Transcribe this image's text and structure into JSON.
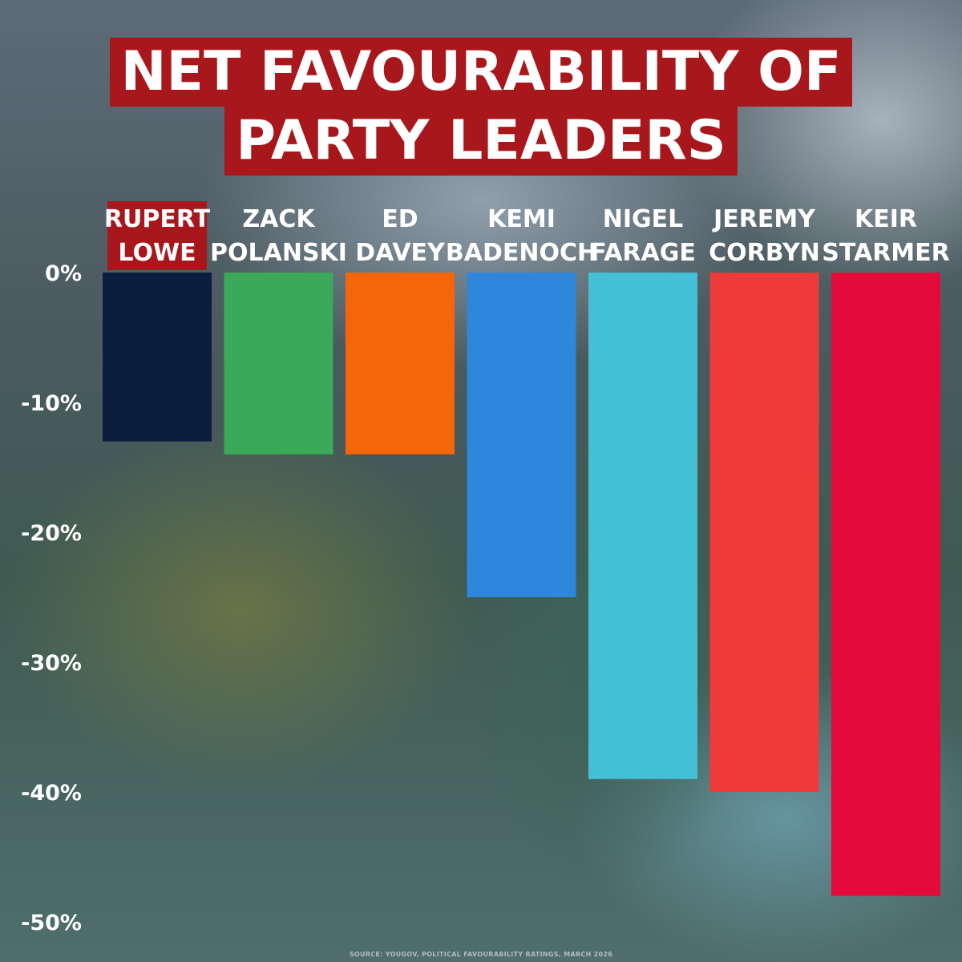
{
  "chart_data": {
    "type": "bar",
    "title": [
      "NET FAVOURABILITY OF",
      "PARTY LEADERS"
    ],
    "categories": [
      [
        "RUPERT",
        "LOWE"
      ],
      [
        "ZACK",
        "POLANSKI"
      ],
      [
        "ED",
        "DAVEY"
      ],
      [
        "KEMI",
        "BADENOCH"
      ],
      [
        "NIGEL",
        "FARAGE"
      ],
      [
        "JEREMY",
        "CORBYN"
      ],
      [
        "KEIR",
        "STARMER"
      ]
    ],
    "values": [
      -13,
      -14,
      -14,
      -25,
      -39,
      -40,
      -48
    ],
    "colors": [
      "#0b1e3f",
      "#3aa95a",
      "#f5650a",
      "#2f87dc",
      "#43c0d6",
      "#ef3a3a",
      "#e20b3a"
    ],
    "highlight_index": 0,
    "highlight_color": "#a8171c",
    "ylim": [
      -50,
      0
    ],
    "yticks": [
      0,
      -10,
      -20,
      -30,
      -40,
      -50
    ],
    "ytick_labels": [
      "0%",
      "-10%",
      "-20%",
      "-30%",
      "-40%",
      "-50%"
    ],
    "xlabel": "",
    "ylabel": "",
    "grid": false,
    "legend": "none"
  },
  "source": "SOURCE: YOUGOV, POLITICAL FAVOURABILITY RATINGS, MARCH 2026"
}
